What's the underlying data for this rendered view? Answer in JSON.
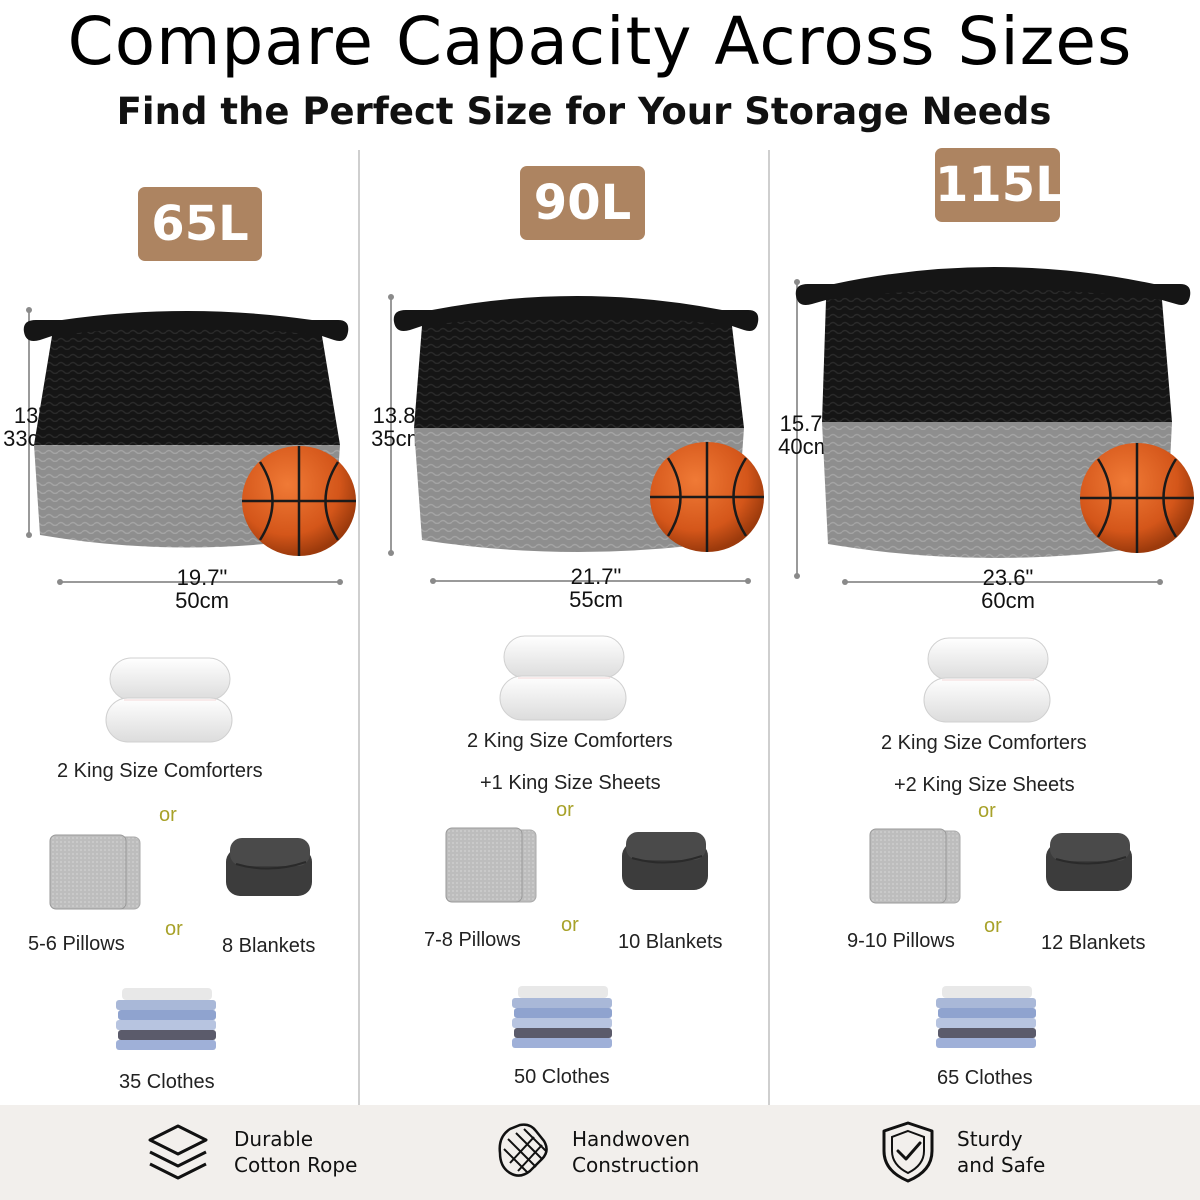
{
  "header": {
    "title": "Compare Capacity Across Sizes",
    "subtitle": "Find the Perfect Size for Your Storage Needs"
  },
  "colors": {
    "badge": "#ad8461",
    "basket_top": "#141414",
    "basket_bottom": "#8d8d8d",
    "ball": "#e0621c",
    "or_text": "#a8a22a",
    "footer_bg": "#f2efec"
  },
  "sizes": [
    {
      "capacity": "65L",
      "height_in": "13\"",
      "height_cm": "33cm",
      "width_in": "19.7\"",
      "width_cm": "50cm",
      "comforters": "2 King Size Comforters",
      "sheets": "",
      "or_1": "or",
      "pillows": "5-6 Pillows",
      "or_2": "or",
      "blankets": "8 Blankets",
      "clothes": "35 Clothes"
    },
    {
      "capacity": "90L",
      "height_in": "13.8\"",
      "height_cm": "35cm",
      "width_in": "21.7\"",
      "width_cm": "55cm",
      "comforters": "2 King Size Comforters",
      "sheets": "+1 King Size Sheets",
      "or_1": "or",
      "pillows": "7-8 Pillows",
      "or_2": "or",
      "blankets": "10 Blankets",
      "clothes": "50 Clothes"
    },
    {
      "capacity": "115L",
      "height_in": "15.7\"",
      "height_cm": "40cm",
      "width_in": "23.6\"",
      "width_cm": "60cm",
      "comforters": "2 King Size Comforters",
      "sheets": "+2 King Size Sheets",
      "or_1": "or",
      "pillows": "9-10 Pillows",
      "or_2": "or",
      "blankets": "12 Blankets",
      "clothes": "65 Clothes"
    }
  ],
  "features": [
    {
      "icon": "layers-icon",
      "line1": "Durable",
      "line2": "Cotton Rope"
    },
    {
      "icon": "weave-hand-icon",
      "line1": "Handwoven",
      "line2": "Construction"
    },
    {
      "icon": "shield-check-icon",
      "line1": "Sturdy",
      "line2": "and Safe"
    }
  ]
}
